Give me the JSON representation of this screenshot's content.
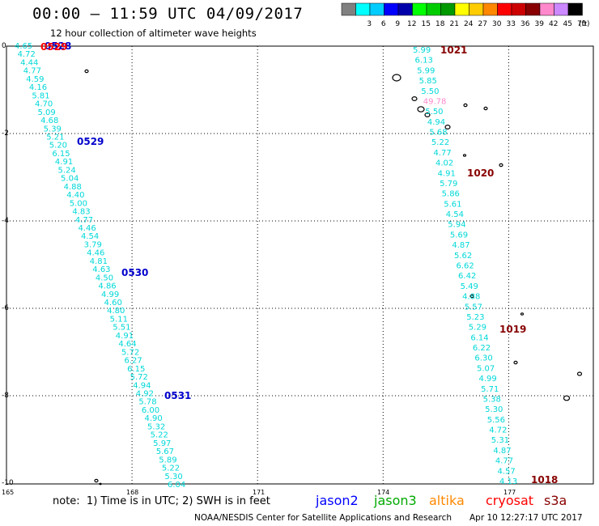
{
  "header": {
    "title": "00:00 – 11:59 UTC 04/09/2017",
    "subtitle": "12 hour collection of altimeter wave heights"
  },
  "legend": {
    "swatches": [
      {
        "color": "#808080",
        "label": ""
      },
      {
        "color": "#00ffff",
        "label": "3"
      },
      {
        "color": "#00ccff",
        "label": "6"
      },
      {
        "color": "#0000ff",
        "label": "9"
      },
      {
        "color": "#0000aa",
        "label": "12"
      },
      {
        "color": "#00ff00",
        "label": "15"
      },
      {
        "color": "#00cc00",
        "label": "18"
      },
      {
        "color": "#009900",
        "label": "21"
      },
      {
        "color": "#ffff00",
        "label": "24"
      },
      {
        "color": "#ffcc00",
        "label": "27"
      },
      {
        "color": "#ff8800",
        "label": "30"
      },
      {
        "color": "#ff0000",
        "label": "33"
      },
      {
        "color": "#cc0000",
        "label": "36"
      },
      {
        "color": "#880000",
        "label": "39"
      },
      {
        "color": "#ff88cc",
        "label": "42"
      },
      {
        "color": "#cc88ff",
        "label": "45"
      },
      {
        "color": "#000000",
        "label": "70"
      }
    ],
    "unit": "(ft)"
  },
  "axes": {
    "lat_ticks": [
      "0",
      "-2",
      "-4",
      "-6",
      "-8",
      "-10"
    ],
    "lon_ticks": [
      "165",
      "168",
      "171",
      "174",
      "177"
    ]
  },
  "tracks": {
    "west": {
      "color": "#00d8d8",
      "values": [
        "4.65",
        "4.72",
        "4.44",
        "4.77",
        "4.59",
        "4.16",
        "5.81",
        "4.70",
        "5.09",
        "4.68",
        "5.39",
        "5.21",
        "5.20",
        "6.15",
        "4.91",
        "5.24",
        "5.04",
        "4.88",
        "4.40",
        "5.00",
        "4.83",
        "4.77",
        "4.46",
        "4.54",
        "3.79",
        "4.46",
        "4.81",
        "4.63",
        "4.50",
        "4.86",
        "4.99",
        "4.60",
        "4.80",
        "5.11",
        "5.51",
        "4.91",
        "4.64",
        "5.72",
        "6.27",
        "6.15",
        "5.72",
        "4.94",
        "4.92",
        "5.78",
        "6.00",
        "4.90",
        "5.32",
        "5.22",
        "5.97",
        "5.67",
        "5.89",
        "5.22",
        "5.30",
        "6.04"
      ]
    },
    "east": {
      "color": "#00d8d8",
      "values": [
        "5.99",
        "6.13",
        "5.99",
        "5.85",
        "5.50",
        "49.78",
        "5.50",
        "4.94",
        "5.68",
        "5.22",
        "4.77",
        "4.02",
        "4.91",
        "5.79",
        "5.86",
        "5.61",
        "4.54",
        "5.94",
        "5.69",
        "4.87",
        "5.62",
        "6.62",
        "6.42",
        "5.49",
        "4.88",
        "5.57",
        "5.23",
        "5.29",
        "6.14",
        "6.22",
        "6.30",
        "5.07",
        "4.99",
        "5.71",
        "5.38",
        "5.30",
        "5.56",
        "4.72",
        "5.31",
        "4.87",
        "4.77",
        "4.57",
        "4.13"
      ]
    }
  },
  "passes": [
    {
      "label": "0528",
      "color": "#0000cc"
    },
    {
      "label": "0529",
      "color": "#0000cc"
    },
    {
      "label": "0530",
      "color": "#0000cc"
    },
    {
      "label": "0531",
      "color": "#0000cc"
    },
    {
      "label": "1021",
      "color": "#880000"
    },
    {
      "label": "1020",
      "color": "#880000"
    },
    {
      "label": "1019",
      "color": "#880000"
    },
    {
      "label": "1018",
      "color": "#880000"
    }
  ],
  "overlap_label": {
    "label": "0529",
    "color": "#ff0000"
  },
  "footer": {
    "note": "note:  1) Time is in UTC; 2) SWH is in feet",
    "satellites": [
      {
        "name": "jason2",
        "color": "#0000ff"
      },
      {
        "name": "jason3",
        "color": "#00aa00"
      },
      {
        "name": "altika",
        "color": "#ff8800"
      },
      {
        "name": "cryosat",
        "color": "#ff0000"
      },
      {
        "name": "s3a",
        "color": "#880000"
      }
    ],
    "credit": "NOAA/NESDIS Center for Satellite Applications and Research",
    "timestamp": "Apr 10 12:27:17 UTC 2017"
  }
}
